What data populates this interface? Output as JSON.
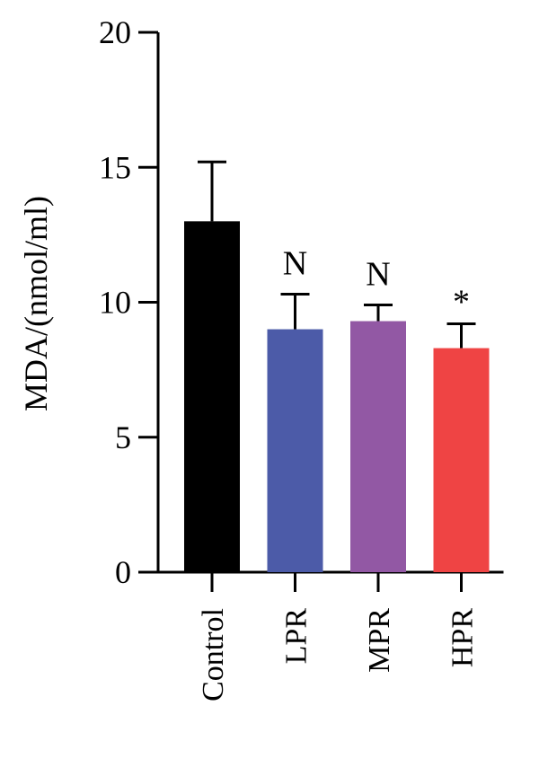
{
  "chart_data": {
    "type": "bar",
    "title": "",
    "xlabel": "",
    "ylabel": "MDA/(nmol/ml)",
    "ylim": [
      0,
      20
    ],
    "yticks": [
      0,
      5,
      10,
      15,
      20
    ],
    "categories": [
      "Control",
      "LPR",
      "MPR",
      "HPR"
    ],
    "values": [
      13.0,
      9.0,
      9.3,
      8.3
    ],
    "error": [
      2.2,
      1.3,
      0.6,
      0.9
    ],
    "annotations": [
      "",
      "N",
      "N",
      "*"
    ],
    "colors": [
      "#000000",
      "#4c5ba8",
      "#9258a4",
      "#ef4444"
    ],
    "grid": false,
    "legend": "none"
  }
}
